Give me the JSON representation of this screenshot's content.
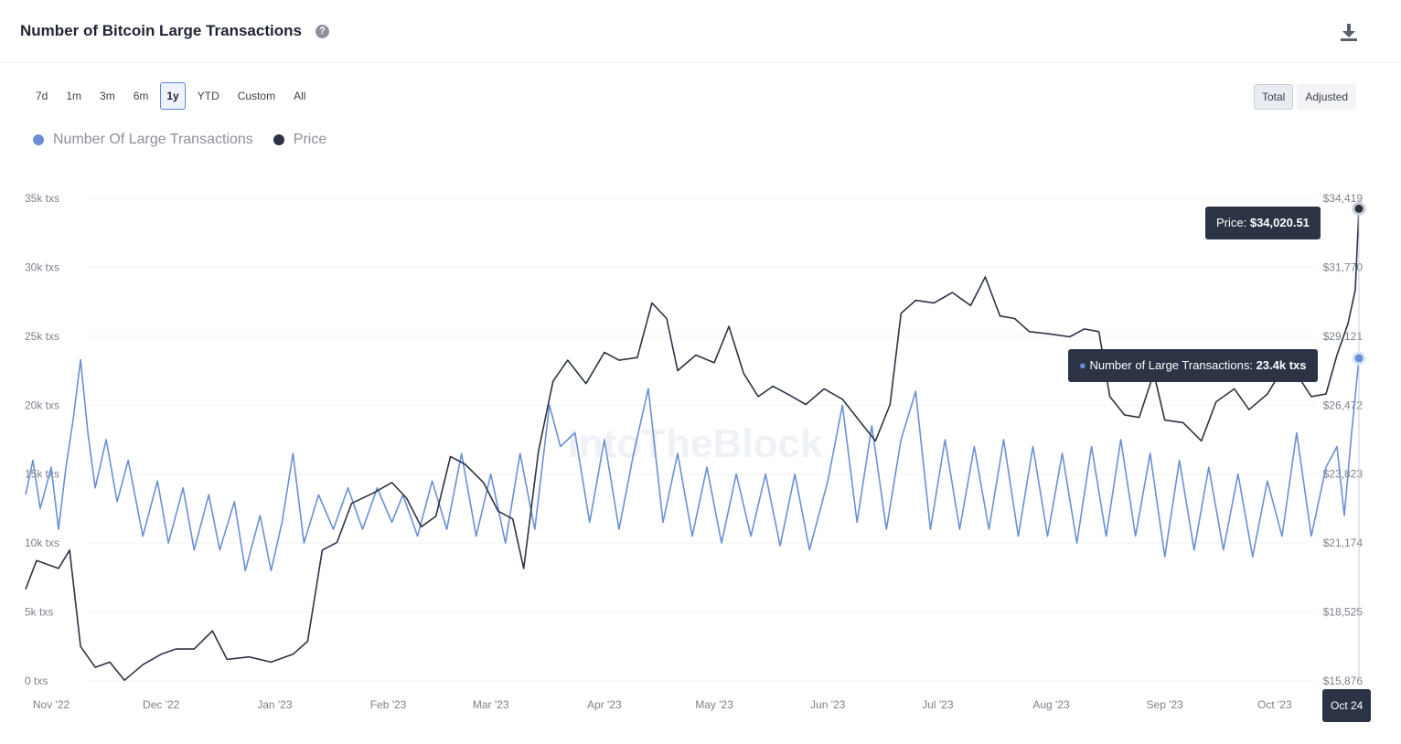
{
  "header": {
    "title": "Number of Bitcoin Large Transactions",
    "help_icon": "question-circle-icon",
    "download_icon": "download-icon"
  },
  "range_buttons": [
    "7d",
    "1m",
    "3m",
    "6m",
    "1y",
    "YTD",
    "Custom",
    "All"
  ],
  "active_range": "1y",
  "mode_buttons": [
    "Total",
    "Adjusted"
  ],
  "active_mode": "Total",
  "legend": [
    {
      "label": "Number Of Large Transactions",
      "color": "#6b8fd6"
    },
    {
      "label": "Price",
      "color": "#2b3344"
    }
  ],
  "watermark": "IntoTheBlock",
  "tooltips": {
    "price_label": "Price: ",
    "price_value": "$34,020.51",
    "tx_label": "Number of Large Transactions: ",
    "tx_value": "23.4k txs",
    "date": "Oct 24"
  },
  "chart_data": {
    "type": "line",
    "title": "Number of Bitcoin Large Transactions",
    "left_axis": {
      "ticks": [
        "0 txs",
        "5k txs",
        "10k txs",
        "15k txs",
        "20k txs",
        "25k txs",
        "30k txs",
        "35k txs"
      ],
      "range": [
        0,
        35000
      ]
    },
    "right_axis": {
      "ticks": [
        "$15,876",
        "$18,525",
        "$21,174",
        "$23,823",
        "$26,472",
        "$29,121",
        "$31,770",
        "$34,419"
      ],
      "range": [
        15876,
        34419
      ]
    },
    "x_ticks": [
      "Nov '22",
      "Dec '22",
      "Jan '23",
      "Feb '23",
      "Mar '23",
      "Apr '23",
      "May '23",
      "Jun '23",
      "Jul '23",
      "Aug '23",
      "Sep '23",
      "Oct '23"
    ],
    "x_range": [
      "2022-10-25",
      "2023-10-24"
    ],
    "series": [
      {
        "name": "Number Of Large Transactions",
        "axis": "left",
        "color": "#6b8fd6",
        "points": [
          [
            "2022-10-25",
            13500
          ],
          [
            "2022-10-27",
            16000
          ],
          [
            "2022-10-29",
            12500
          ],
          [
            "2022-11-01",
            15500
          ],
          [
            "2022-11-03",
            11000
          ],
          [
            "2022-11-05",
            15500
          ],
          [
            "2022-11-07",
            19000
          ],
          [
            "2022-11-09",
            23300
          ],
          [
            "2022-11-11",
            18000
          ],
          [
            "2022-11-13",
            14000
          ],
          [
            "2022-11-16",
            17500
          ],
          [
            "2022-11-19",
            13000
          ],
          [
            "2022-11-22",
            16000
          ],
          [
            "2022-11-26",
            10500
          ],
          [
            "2022-11-30",
            14500
          ],
          [
            "2022-12-03",
            10000
          ],
          [
            "2022-12-07",
            14000
          ],
          [
            "2022-12-10",
            9500
          ],
          [
            "2022-12-14",
            13500
          ],
          [
            "2022-12-17",
            9500
          ],
          [
            "2022-12-21",
            13000
          ],
          [
            "2022-12-24",
            8000
          ],
          [
            "2022-12-28",
            12000
          ],
          [
            "2022-12-31",
            8000
          ],
          [
            "2023-01-03",
            11500
          ],
          [
            "2023-01-06",
            16500
          ],
          [
            "2023-01-09",
            10000
          ],
          [
            "2023-01-13",
            13500
          ],
          [
            "2023-01-17",
            11000
          ],
          [
            "2023-01-21",
            14000
          ],
          [
            "2023-01-25",
            11000
          ],
          [
            "2023-01-29",
            14000
          ],
          [
            "2023-02-02",
            11500
          ],
          [
            "2023-02-05",
            13500
          ],
          [
            "2023-02-09",
            10500
          ],
          [
            "2023-02-13",
            14500
          ],
          [
            "2023-02-17",
            11000
          ],
          [
            "2023-02-21",
            16500
          ],
          [
            "2023-02-25",
            10500
          ],
          [
            "2023-03-01",
            15000
          ],
          [
            "2023-03-05",
            10000
          ],
          [
            "2023-03-09",
            16500
          ],
          [
            "2023-03-13",
            11000
          ],
          [
            "2023-03-17",
            20000
          ],
          [
            "2023-03-20",
            17000
          ],
          [
            "2023-03-24",
            18000
          ],
          [
            "2023-03-28",
            11500
          ],
          [
            "2023-04-01",
            17500
          ],
          [
            "2023-04-05",
            11000
          ],
          [
            "2023-04-09",
            16500
          ],
          [
            "2023-04-13",
            21200
          ],
          [
            "2023-04-17",
            11500
          ],
          [
            "2023-04-21",
            16500
          ],
          [
            "2023-04-25",
            10500
          ],
          [
            "2023-04-29",
            15500
          ],
          [
            "2023-05-03",
            10000
          ],
          [
            "2023-05-07",
            15000
          ],
          [
            "2023-05-11",
            10500
          ],
          [
            "2023-05-15",
            15000
          ],
          [
            "2023-05-19",
            9800
          ],
          [
            "2023-05-23",
            15000
          ],
          [
            "2023-05-27",
            9500
          ],
          [
            "2023-06-01",
            14500
          ],
          [
            "2023-06-05",
            20000
          ],
          [
            "2023-06-09",
            11500
          ],
          [
            "2023-06-13",
            18500
          ],
          [
            "2023-06-17",
            11000
          ],
          [
            "2023-06-21",
            17500
          ],
          [
            "2023-06-25",
            21000
          ],
          [
            "2023-06-29",
            11000
          ],
          [
            "2023-07-03",
            17500
          ],
          [
            "2023-07-07",
            11000
          ],
          [
            "2023-07-11",
            17000
          ],
          [
            "2023-07-15",
            11000
          ],
          [
            "2023-07-19",
            17500
          ],
          [
            "2023-07-23",
            10500
          ],
          [
            "2023-07-27",
            17000
          ],
          [
            "2023-07-31",
            10500
          ],
          [
            "2023-08-04",
            16500
          ],
          [
            "2023-08-08",
            10000
          ],
          [
            "2023-08-12",
            17000
          ],
          [
            "2023-08-16",
            10500
          ],
          [
            "2023-08-20",
            17500
          ],
          [
            "2023-08-24",
            10500
          ],
          [
            "2023-08-28",
            16500
          ],
          [
            "2023-09-01",
            9000
          ],
          [
            "2023-09-05",
            16000
          ],
          [
            "2023-09-09",
            9500
          ],
          [
            "2023-09-13",
            15500
          ],
          [
            "2023-09-17",
            9500
          ],
          [
            "2023-09-21",
            15000
          ],
          [
            "2023-09-25",
            9000
          ],
          [
            "2023-09-29",
            14500
          ],
          [
            "2023-10-03",
            10500
          ],
          [
            "2023-10-07",
            18000
          ],
          [
            "2023-10-11",
            10500
          ],
          [
            "2023-10-15",
            15500
          ],
          [
            "2023-10-18",
            17000
          ],
          [
            "2023-10-20",
            12000
          ],
          [
            "2023-10-22",
            18000
          ],
          [
            "2023-10-24",
            23400
          ]
        ]
      },
      {
        "name": "Price",
        "axis": "right",
        "color": "#2b3344",
        "points": [
          [
            "2022-10-25",
            19400
          ],
          [
            "2022-10-28",
            20500
          ],
          [
            "2022-11-01",
            20300
          ],
          [
            "2022-11-03",
            20200
          ],
          [
            "2022-11-06",
            20900
          ],
          [
            "2022-11-09",
            17200
          ],
          [
            "2022-11-13",
            16400
          ],
          [
            "2022-11-17",
            16600
          ],
          [
            "2022-11-21",
            15900
          ],
          [
            "2022-11-26",
            16500
          ],
          [
            "2022-12-01",
            16900
          ],
          [
            "2022-12-05",
            17100
          ],
          [
            "2022-12-10",
            17100
          ],
          [
            "2022-12-15",
            17800
          ],
          [
            "2022-12-19",
            16700
          ],
          [
            "2022-12-25",
            16800
          ],
          [
            "2022-12-31",
            16600
          ],
          [
            "2023-01-06",
            16900
          ],
          [
            "2023-01-10",
            17400
          ],
          [
            "2023-01-14",
            20900
          ],
          [
            "2023-01-18",
            21200
          ],
          [
            "2023-01-22",
            22700
          ],
          [
            "2023-01-28",
            23100
          ],
          [
            "2023-02-02",
            23500
          ],
          [
            "2023-02-06",
            22900
          ],
          [
            "2023-02-10",
            21800
          ],
          [
            "2023-02-14",
            22200
          ],
          [
            "2023-02-18",
            24500
          ],
          [
            "2023-02-22",
            24200
          ],
          [
            "2023-02-27",
            23500
          ],
          [
            "2023-03-03",
            22400
          ],
          [
            "2023-03-07",
            22100
          ],
          [
            "2023-03-10",
            20200
          ],
          [
            "2023-03-14",
            24700
          ],
          [
            "2023-03-18",
            27400
          ],
          [
            "2023-03-22",
            28200
          ],
          [
            "2023-03-27",
            27300
          ],
          [
            "2023-04-01",
            28500
          ],
          [
            "2023-04-05",
            28200
          ],
          [
            "2023-04-10",
            28300
          ],
          [
            "2023-04-14",
            30400
          ],
          [
            "2023-04-18",
            29800
          ],
          [
            "2023-04-21",
            27800
          ],
          [
            "2023-04-26",
            28400
          ],
          [
            "2023-05-01",
            28100
          ],
          [
            "2023-05-05",
            29500
          ],
          [
            "2023-05-09",
            27700
          ],
          [
            "2023-05-13",
            26800
          ],
          [
            "2023-05-17",
            27200
          ],
          [
            "2023-05-21",
            26900
          ],
          [
            "2023-05-26",
            26500
          ],
          [
            "2023-05-31",
            27100
          ],
          [
            "2023-06-05",
            26700
          ],
          [
            "2023-06-10",
            25800
          ],
          [
            "2023-06-14",
            25100
          ],
          [
            "2023-06-18",
            26500
          ],
          [
            "2023-06-21",
            30000
          ],
          [
            "2023-06-25",
            30500
          ],
          [
            "2023-06-30",
            30400
          ],
          [
            "2023-07-05",
            30800
          ],
          [
            "2023-07-10",
            30300
          ],
          [
            "2023-07-14",
            31400
          ],
          [
            "2023-07-18",
            29900
          ],
          [
            "2023-07-22",
            29800
          ],
          [
            "2023-07-26",
            29300
          ],
          [
            "2023-08-01",
            29200
          ],
          [
            "2023-08-06",
            29100
          ],
          [
            "2023-08-10",
            29400
          ],
          [
            "2023-08-14",
            29300
          ],
          [
            "2023-08-17",
            26800
          ],
          [
            "2023-08-21",
            26100
          ],
          [
            "2023-08-25",
            26000
          ],
          [
            "2023-08-29",
            27700
          ],
          [
            "2023-09-01",
            25900
          ],
          [
            "2023-09-06",
            25800
          ],
          [
            "2023-09-11",
            25100
          ],
          [
            "2023-09-15",
            26600
          ],
          [
            "2023-09-20",
            27100
          ],
          [
            "2023-09-24",
            26300
          ],
          [
            "2023-09-29",
            26900
          ],
          [
            "2023-10-02",
            27600
          ],
          [
            "2023-10-06",
            27900
          ],
          [
            "2023-10-11",
            26800
          ],
          [
            "2023-10-15",
            26900
          ],
          [
            "2023-10-18",
            28400
          ],
          [
            "2023-10-21",
            29600
          ],
          [
            "2023-10-23",
            30900
          ],
          [
            "2023-10-24",
            34020.51
          ]
        ]
      }
    ]
  }
}
